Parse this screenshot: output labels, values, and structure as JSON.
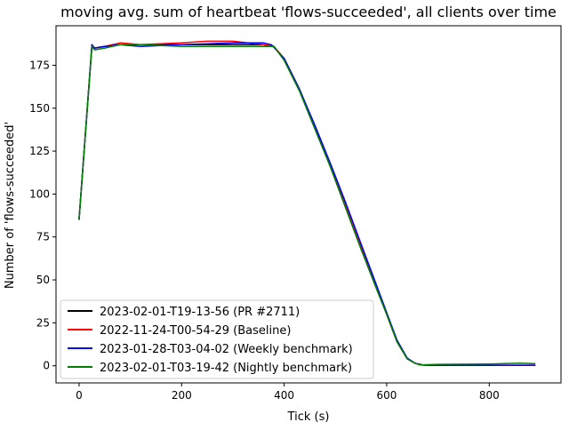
{
  "chart_data": {
    "type": "line",
    "title": "moving avg. sum of heartbeat 'flows-succeeded', all clients over time",
    "xlabel": "Tick (s)",
    "ylabel": "Number of 'flows-succeeded'",
    "xlim": [
      -45,
      940
    ],
    "ylim": [
      -10,
      198
    ],
    "xticks": [
      0,
      200,
      400,
      600,
      800
    ],
    "yticks": [
      0,
      25,
      50,
      75,
      100,
      125,
      150,
      175
    ],
    "legend_position": "lower-left",
    "grid": false,
    "series": [
      {
        "name": "2023-02-01-T19-13-56 (PR #2711)",
        "color": "#000000",
        "x": [
          0,
          25,
          30,
          50,
          80,
          120,
          200,
          300,
          360,
          380,
          400,
          430,
          460,
          490,
          520,
          550,
          580,
          600,
          620,
          640,
          655,
          665,
          680,
          700,
          800,
          890
        ],
        "y": [
          85,
          186,
          185,
          186,
          187,
          187,
          187,
          187,
          187,
          186,
          178,
          160,
          138,
          116,
          92,
          68,
          45,
          30,
          14,
          4,
          1.5,
          0.5,
          0.3,
          0.2,
          0.2,
          0.2
        ]
      },
      {
        "name": "2022-11-24-T00-54-29 (Baseline)",
        "color": "#ff0000",
        "x": [
          0,
          25,
          30,
          50,
          80,
          120,
          200,
          250,
          300,
          360,
          380,
          400,
          430,
          460,
          490,
          520,
          550,
          580,
          600,
          620,
          640,
          655,
          670,
          690,
          800,
          890
        ],
        "y": [
          85,
          187,
          185,
          186,
          188,
          187,
          188,
          189,
          189,
          187,
          186,
          179,
          161,
          139,
          117,
          93,
          69,
          46,
          30,
          14,
          4,
          1.5,
          0.5,
          0.3,
          0.3,
          0.3
        ]
      },
      {
        "name": "2023-01-28-T03-04-02 (Weekly benchmark)",
        "color": "#0000ff",
        "x": [
          0,
          25,
          30,
          50,
          80,
          120,
          200,
          300,
          360,
          375,
          400,
          430,
          460,
          490,
          520,
          550,
          580,
          600,
          620,
          640,
          655,
          670,
          690,
          800,
          890
        ],
        "y": [
          85,
          187,
          185,
          186,
          187,
          186,
          187,
          188,
          188,
          187,
          179,
          161,
          140,
          118,
          95,
          71,
          47,
          31,
          15,
          4.5,
          1.5,
          0.5,
          0.3,
          0.3,
          0.3
        ]
      },
      {
        "name": "2023-02-01-T03-19-42 (Nightly benchmark)",
        "color": "#008000",
        "x": [
          0,
          25,
          30,
          50,
          80,
          120,
          200,
          300,
          360,
          380,
          400,
          430,
          460,
          490,
          520,
          550,
          580,
          600,
          620,
          640,
          655,
          665,
          680,
          700,
          800,
          860,
          890
        ],
        "y": [
          85,
          186,
          184,
          185,
          187,
          187,
          186,
          186,
          186,
          186,
          178,
          160,
          138,
          116,
          92,
          68,
          45,
          30,
          14,
          4,
          1.5,
          0.5,
          0.6,
          0.8,
          1.0,
          1.5,
          1.2
        ]
      }
    ]
  }
}
